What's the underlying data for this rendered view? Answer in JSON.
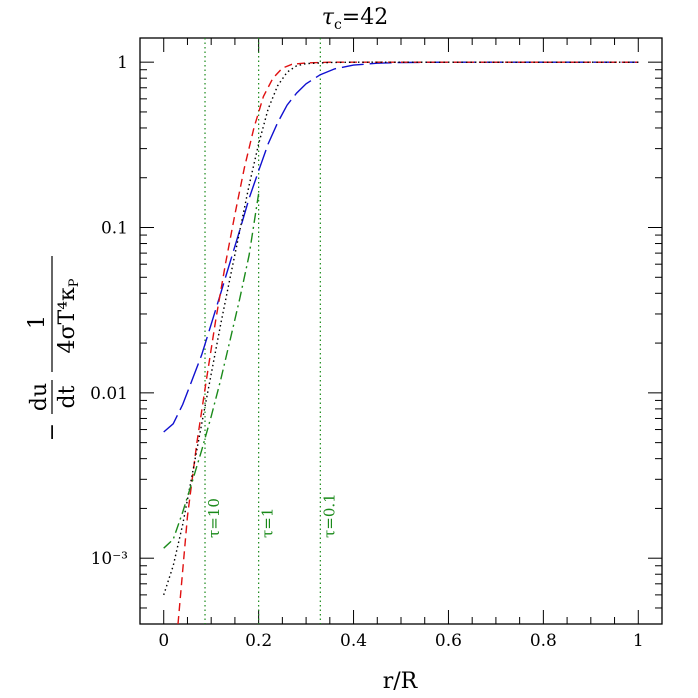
{
  "chart_data": {
    "type": "line",
    "title": "τc=42",
    "title_parts": {
      "symbol": "τ",
      "subscript": "c",
      "rest": "=42"
    },
    "xlabel": "r/R",
    "ylabel": "− (du/dt) · 1/(4σT⁴κP)",
    "ylabel_parts": {
      "minus": "−",
      "du": "du",
      "dt": "dt",
      "num": "1",
      "den": "4σT⁴κ",
      "den_sub": "P"
    },
    "xlim": [
      -0.05,
      1.05
    ],
    "ylim": [
      0.0004,
      1.4
    ],
    "yscale": "log",
    "x_ticks": [
      "0",
      "0.2",
      "0.4",
      "0.6",
      "0.8",
      "1"
    ],
    "x_tick_values": [
      0,
      0.2,
      0.4,
      0.6,
      0.8,
      1
    ],
    "y_ticks": [
      "10⁻³",
      "0.01",
      "0.1",
      "1"
    ],
    "y_tick_values": [
      0.001,
      0.01,
      0.1,
      1
    ],
    "grid": false,
    "markers": [
      {
        "x": 0.087,
        "label": "τ=10"
      },
      {
        "x": 0.2,
        "label": "τ=1"
      },
      {
        "x": 0.33,
        "label": "τ=0.1"
      }
    ],
    "colors": {
      "blue": "#1010d0",
      "red": "#e01010",
      "green": "#1a8a1a",
      "black": "#000000"
    },
    "series": [
      {
        "color": "#1010d0",
        "dash": "long-dash",
        "x": [
          0,
          0.02,
          0.04,
          0.06,
          0.08,
          0.1,
          0.12,
          0.14,
          0.16,
          0.18,
          0.2,
          0.22,
          0.24,
          0.26,
          0.28,
          0.3,
          0.33,
          0.36,
          0.4,
          0.45,
          0.5,
          0.6,
          0.7,
          0.8,
          0.9,
          1.0
        ],
        "y": [
          0.0058,
          0.0065,
          0.0085,
          0.012,
          0.017,
          0.026,
          0.04,
          0.062,
          0.096,
          0.15,
          0.22,
          0.32,
          0.43,
          0.55,
          0.65,
          0.74,
          0.84,
          0.91,
          0.96,
          0.985,
          0.995,
          1.0,
          1.0,
          1.0,
          1.0,
          1.0
        ]
      },
      {
        "color": "#e01010",
        "dash": "short-dash",
        "x": [
          0.03,
          0.05,
          0.07,
          0.09,
          0.11,
          0.13,
          0.15,
          0.17,
          0.19,
          0.21,
          0.23,
          0.25,
          0.27,
          0.3,
          0.35,
          0.4,
          0.5,
          0.6,
          0.7,
          0.8,
          0.9,
          1.0
        ],
        "y": [
          0.0004,
          0.0018,
          0.005,
          0.012,
          0.028,
          0.06,
          0.12,
          0.23,
          0.4,
          0.62,
          0.8,
          0.92,
          0.97,
          0.99,
          1.0,
          1.0,
          1.0,
          1.0,
          1.0,
          1.0,
          1.0,
          1.0
        ]
      },
      {
        "color": "#000000",
        "dash": "dotted",
        "x": [
          0,
          0.02,
          0.04,
          0.06,
          0.08,
          0.1,
          0.12,
          0.14,
          0.16,
          0.18,
          0.2,
          0.22,
          0.24,
          0.26,
          0.28,
          0.3,
          0.35,
          0.4,
          0.5,
          0.6,
          0.8,
          1.0
        ],
        "y": [
          0.0006,
          0.0009,
          0.0016,
          0.0032,
          0.0065,
          0.013,
          0.026,
          0.05,
          0.095,
          0.18,
          0.32,
          0.52,
          0.72,
          0.87,
          0.95,
          0.98,
          0.995,
          1.0,
          1.0,
          1.0,
          1.0,
          1.0
        ]
      },
      {
        "color": "#1a8a1a",
        "dash": "dash-dot",
        "x": [
          0,
          0.02,
          0.04,
          0.06,
          0.08,
          0.1,
          0.12,
          0.14,
          0.16,
          0.18,
          0.2
        ],
        "y": [
          0.00115,
          0.0013,
          0.0019,
          0.0029,
          0.0045,
          0.0072,
          0.012,
          0.021,
          0.037,
          0.068,
          0.16
        ]
      }
    ]
  }
}
